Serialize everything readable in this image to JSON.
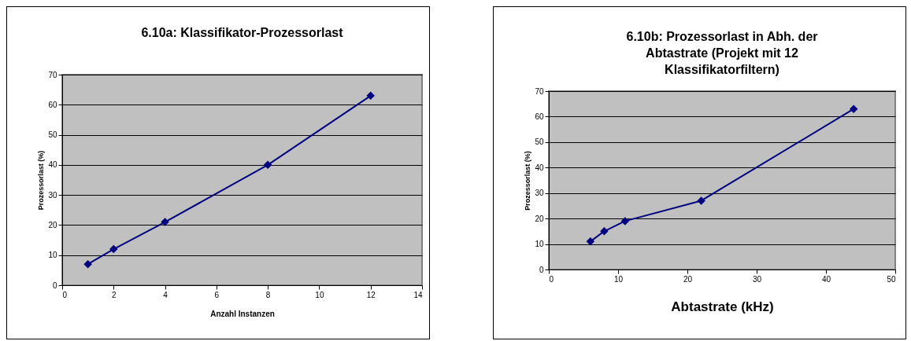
{
  "chart_data": [
    {
      "type": "line",
      "title": "6.10a: Klassifikator-Prozessorlast",
      "xlabel": "Anzahl Instanzen",
      "ylabel": "Prozessorlast (%)",
      "x": [
        1,
        2,
        4,
        8,
        12
      ],
      "series": [
        {
          "color": "#000080",
          "values": [
            7,
            12,
            21,
            40,
            63
          ]
        }
      ],
      "xlim": [
        0,
        14
      ],
      "xticks": [
        0,
        2,
        4,
        6,
        8,
        10,
        12,
        14
      ],
      "ylim": [
        0,
        70
      ],
      "yticks": [
        0,
        10,
        20,
        30,
        40,
        50,
        60,
        70
      ],
      "grid": "y",
      "marker": "diamond",
      "line_style": "solid"
    },
    {
      "type": "line",
      "title": "6.10b: Prozessorlast in Abh. der Abtastrate (Projekt mit 12 Klassifikatorfiltern)",
      "xlabel": "Abtastrate (kHz)",
      "ylabel": "Prozessorlast (%)",
      "x": [
        6,
        8,
        11,
        22,
        44
      ],
      "series": [
        {
          "color": "#000080",
          "values": [
            11,
            15,
            19,
            27,
            63
          ]
        }
      ],
      "xlim": [
        0,
        50
      ],
      "xticks": [
        0,
        10,
        20,
        30,
        40,
        50
      ],
      "ylim": [
        0,
        70
      ],
      "yticks": [
        0,
        10,
        20,
        30,
        40,
        50,
        60,
        70
      ],
      "grid": "y",
      "marker": "diamond",
      "line_style": "solid"
    }
  ]
}
